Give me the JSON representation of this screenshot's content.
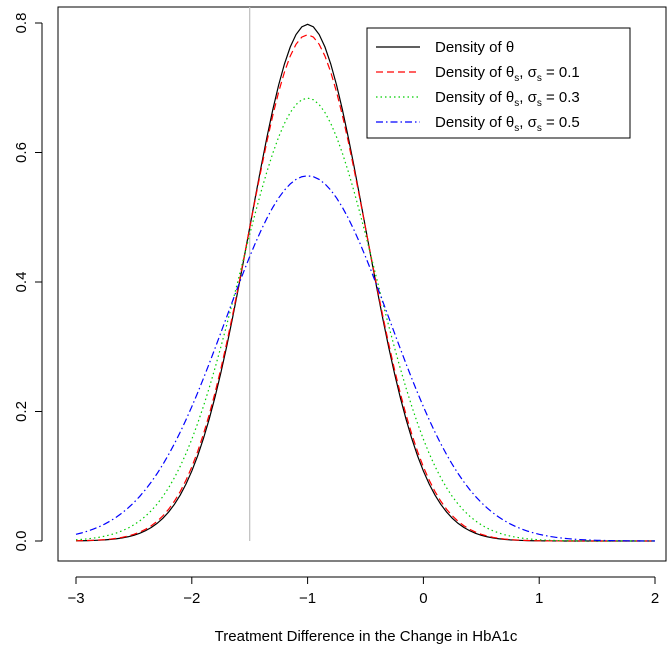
{
  "chart_data": {
    "type": "line",
    "title": "",
    "xlabel": "Treatment Difference in the Change in HbA1c",
    "ylabel": "",
    "xlim": [
      -3,
      2
    ],
    "ylim": [
      0,
      0.8
    ],
    "xticks": [
      -3,
      -2,
      -1,
      0,
      1,
      2
    ],
    "xtick_labels": [
      "−3",
      "−2",
      "−1",
      "0",
      "1",
      "2"
    ],
    "yticks": [
      0.0,
      0.2,
      0.4,
      0.6,
      0.8
    ],
    "ytick_labels": [
      "0.0",
      "0.2",
      "0.4",
      "0.6",
      "0.8"
    ],
    "grid": false,
    "legend_position": "top-right",
    "reference_line": {
      "x": -1.5,
      "color": "#bebebe"
    },
    "series": [
      {
        "name": "Density of θ",
        "name_base": "Density of ",
        "name_symbol": "θ",
        "name_tail": "",
        "mean": -1.0,
        "sd": 0.5,
        "peak": 0.798,
        "color": "#000000",
        "dash": ""
      },
      {
        "name": "Density of θs, σs = 0.1",
        "name_base": "Density of ",
        "name_symbol": "θ",
        "name_sub": "s",
        "name_mid": ", ",
        "name_sigma": "σ",
        "name_sigma_sub": "s",
        "name_tail": " = 0.1",
        "mean": -1.0,
        "sd": 0.51,
        "peak": 0.782,
        "color": "#ff0000",
        "dash": "7,4"
      },
      {
        "name": "Density of θs, σs = 0.3",
        "name_base": "Density of ",
        "name_symbol": "θ",
        "name_sub": "s",
        "name_mid": ", ",
        "name_sigma": "σ",
        "name_sigma_sub": "s",
        "name_tail": " = 0.3",
        "mean": -1.0,
        "sd": 0.583,
        "peak": 0.684,
        "color": "#00cd00",
        "dash": "1.5,3"
      },
      {
        "name": "Density of θs, σs = 0.5",
        "name_base": "Density of ",
        "name_symbol": "θ",
        "name_sub": "s",
        "name_mid": ", ",
        "name_sigma": "σ",
        "name_sigma_sub": "s",
        "name_tail": " = 0.5",
        "mean": -1.0,
        "sd": 0.707,
        "peak": 0.564,
        "color": "#0000ff",
        "dash": "7,3,1.5,3"
      }
    ]
  }
}
